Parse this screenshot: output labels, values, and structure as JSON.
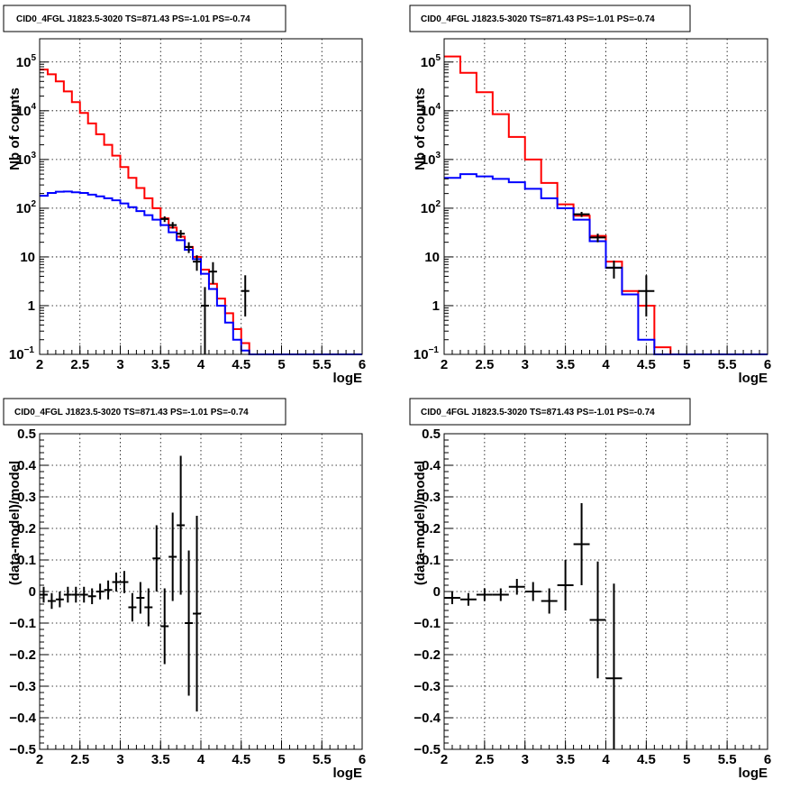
{
  "page": {
    "title_text": "CID0_4FGL J1823.5-3020 TS=871.43 PS=-1.01 PS=-0.74"
  },
  "colors": {
    "data": "#000000",
    "model_total": "#ff0000",
    "model_component": "#0000ff"
  },
  "chart_data": [
    {
      "type": "line",
      "step": true,
      "title": "CID0_4FGL J1823.5-3020 TS=871.43 PS=-1.01 PS=-0.74",
      "xlabel": "logE",
      "ylabel": "Nb of counts",
      "xlim": [
        2,
        6
      ],
      "ylim": [
        0.1,
        300000
      ],
      "yscale": "log",
      "grid": true,
      "xticks": [
        "2",
        "2.5",
        "3",
        "3.5",
        "4",
        "4.5",
        "5",
        "5.5",
        "6"
      ],
      "yticks": [
        {
          "v": 0.1,
          "m": "10",
          "e": "−1"
        },
        {
          "v": 1,
          "m": "1",
          "e": ""
        },
        {
          "v": 10,
          "m": "10",
          "e": ""
        },
        {
          "v": 100,
          "m": "10",
          "e": "2"
        },
        {
          "v": 1000,
          "m": "10",
          "e": "3"
        },
        {
          "v": 10000,
          "m": "10",
          "e": "4"
        },
        {
          "v": 100000,
          "m": "10",
          "e": "5"
        }
      ],
      "bin_width": 0.1,
      "series": [
        {
          "role": "model_total",
          "x": [
            2.0,
            2.1,
            2.2,
            2.3,
            2.4,
            2.5,
            2.6,
            2.7,
            2.8,
            2.9,
            3.0,
            3.1,
            3.2,
            3.3,
            3.4,
            3.5,
            3.6,
            3.7,
            3.8,
            3.9,
            4.0,
            4.1,
            4.2,
            4.3,
            4.4,
            4.5,
            4.6,
            4.7,
            4.8,
            4.9,
            5.0,
            5.1,
            5.2,
            5.3,
            5.4,
            5.5,
            5.6,
            5.7,
            5.8,
            5.9
          ],
          "values": [
            70000,
            56000,
            40000,
            25000,
            15000,
            9000,
            5500,
            3300,
            2000,
            1200,
            700,
            420,
            260,
            160,
            100,
            62,
            40,
            26,
            16,
            10,
            5.5,
            2.8,
            1.4,
            0.7,
            0.33,
            0.17,
            0.1,
            0.1,
            0.1,
            0.1,
            0.1,
            0.1,
            0.1,
            0.1,
            0.1,
            0.1,
            0.1,
            0.1,
            0.1,
            0.1
          ]
        },
        {
          "role": "model_component",
          "x": [
            2.0,
            2.1,
            2.2,
            2.3,
            2.4,
            2.5,
            2.6,
            2.7,
            2.8,
            2.9,
            3.0,
            3.1,
            3.2,
            3.3,
            3.4,
            3.5,
            3.6,
            3.7,
            3.8,
            3.9,
            4.0,
            4.1,
            4.2,
            4.3,
            4.4,
            4.5,
            4.6,
            4.7,
            4.8,
            4.9,
            5.0,
            5.1,
            5.2,
            5.3,
            5.4,
            5.5,
            5.6,
            5.7,
            5.8,
            5.9
          ],
          "values": [
            180,
            205,
            218,
            220,
            212,
            205,
            190,
            175,
            160,
            145,
            125,
            105,
            87,
            72,
            58,
            45,
            32,
            22,
            14,
            9,
            4.5,
            2.2,
            1.0,
            0.45,
            0.2,
            0.12,
            0.1,
            0.1,
            0.1,
            0.1,
            0.1,
            0.1,
            0.1,
            0.1,
            0.1,
            0.1,
            0.1,
            0.1,
            0.1,
            0.1
          ]
        },
        {
          "role": "data",
          "x": [
            3.55,
            3.65,
            3.75,
            3.85,
            3.95,
            4.05,
            4.15,
            4.55
          ],
          "values": [
            60,
            45,
            30,
            16,
            8,
            1,
            5,
            2
          ],
          "err_low": [
            8,
            7,
            5.5,
            4,
            2.8,
            0.9,
            2.2,
            1.4
          ],
          "err_high": [
            8,
            7,
            5.5,
            4,
            2.8,
            1.4,
            2.8,
            2.2
          ]
        }
      ]
    },
    {
      "type": "line",
      "step": true,
      "title": "CID0_4FGL J1823.5-3020 TS=871.43 PS=-1.01 PS=-0.74",
      "xlabel": "logE",
      "ylabel": "Nb of counts",
      "xlim": [
        2,
        6
      ],
      "ylim": [
        0.1,
        300000
      ],
      "yscale": "log",
      "grid": true,
      "xticks": [
        "2",
        "2.5",
        "3",
        "3.5",
        "4",
        "4.5",
        "5",
        "5.5",
        "6"
      ],
      "yticks": [
        {
          "v": 0.1,
          "m": "10",
          "e": "−1"
        },
        {
          "v": 1,
          "m": "1",
          "e": ""
        },
        {
          "v": 10,
          "m": "10",
          "e": ""
        },
        {
          "v": 100,
          "m": "10",
          "e": "2"
        },
        {
          "v": 1000,
          "m": "10",
          "e": "3"
        },
        {
          "v": 10000,
          "m": "10",
          "e": "4"
        },
        {
          "v": 100000,
          "m": "10",
          "e": "5"
        }
      ],
      "bin_width": 0.2,
      "series": [
        {
          "role": "model_total",
          "x": [
            2.0,
            2.2,
            2.4,
            2.6,
            2.8,
            3.0,
            3.2,
            3.4,
            3.6,
            3.8,
            4.0,
            4.2,
            4.4,
            4.6,
            4.8,
            5.0,
            5.2,
            5.4,
            5.6,
            5.8
          ],
          "values": [
            130000,
            60000,
            24000,
            8500,
            2900,
            1000,
            330,
            120,
            70,
            27,
            8,
            2,
            1,
            0.14,
            0.1,
            0.1,
            0.1,
            0.1,
            0.1,
            0.1
          ]
        },
        {
          "role": "model_component",
          "x": [
            2.0,
            2.2,
            2.4,
            2.6,
            2.8,
            3.0,
            3.2,
            3.4,
            3.6,
            3.8,
            4.0,
            4.2,
            4.4,
            4.6,
            4.8,
            5.0,
            5.2,
            5.4,
            5.6,
            5.8
          ],
          "values": [
            420,
            500,
            450,
            400,
            340,
            250,
            160,
            100,
            58,
            21,
            6,
            1.7,
            0.2,
            0.1,
            0.1,
            0.1,
            0.1,
            0.1,
            0.1,
            0.1
          ]
        },
        {
          "role": "data",
          "x": [
            3.7,
            3.9,
            4.1,
            4.5
          ],
          "values": [
            75,
            25,
            6,
            2
          ],
          "err_low": [
            9,
            5,
            2.4,
            1.4
          ],
          "err_high": [
            9,
            5,
            2.4,
            2.2
          ]
        }
      ]
    },
    {
      "type": "scatter",
      "title": "CID0_4FGL J1823.5-3020 TS=871.43 PS=-1.01 PS=-0.74",
      "xlabel": "logE",
      "ylabel": "(data-model)/model",
      "xlim": [
        2,
        6
      ],
      "ylim": [
        -0.5,
        0.5
      ],
      "grid": true,
      "xticks": [
        "2",
        "2.5",
        "3",
        "3.5",
        "4",
        "4.5",
        "5",
        "5.5",
        "6"
      ],
      "yticks": [
        "−0.5",
        "−0.4",
        "−0.3",
        "−0.2",
        "−0.1",
        "0",
        "0.1",
        "0.2",
        "0.3",
        "0.4",
        "0.5"
      ],
      "x_half_width": 0.05,
      "series": [
        {
          "role": "data",
          "x": [
            2.05,
            2.15,
            2.25,
            2.35,
            2.45,
            2.55,
            2.65,
            2.75,
            2.85,
            2.95,
            3.05,
            3.15,
            3.25,
            3.35,
            3.45,
            3.55,
            3.65,
            3.75,
            3.85,
            3.95
          ],
          "y": [
            -0.01,
            -0.03,
            -0.025,
            -0.01,
            -0.01,
            -0.01,
            -0.015,
            0.0,
            0.005,
            0.03,
            0.03,
            -0.05,
            -0.02,
            -0.05,
            0.105,
            -0.11,
            0.11,
            0.21,
            -0.1,
            -0.07
          ],
          "yerr": [
            0.025,
            0.025,
            0.025,
            0.025,
            0.025,
            0.025,
            0.025,
            0.025,
            0.03,
            0.03,
            0.035,
            0.045,
            0.05,
            0.06,
            0.105,
            0.12,
            0.14,
            0.22,
            0.23,
            0.31
          ]
        }
      ]
    },
    {
      "type": "scatter",
      "title": "CID0_4FGL J1823.5-3020 TS=871.43 PS=-1.01 PS=-0.74",
      "xlabel": "logE",
      "ylabel": "(data-model)/model",
      "xlim": [
        2,
        6
      ],
      "ylim": [
        -0.5,
        0.5
      ],
      "grid": true,
      "xticks": [
        "2",
        "2.5",
        "3",
        "3.5",
        "4",
        "4.5",
        "5",
        "5.5",
        "6"
      ],
      "yticks": [
        "−0.5",
        "−0.4",
        "−0.3",
        "−0.2",
        "−0.1",
        "0",
        "0.1",
        "0.2",
        "0.3",
        "0.4",
        "0.5"
      ],
      "x_half_width": 0.1,
      "series": [
        {
          "role": "data",
          "x": [
            2.1,
            2.3,
            2.5,
            2.7,
            2.9,
            3.1,
            3.3,
            3.5,
            3.7,
            3.9,
            4.1
          ],
          "y": [
            -0.02,
            -0.025,
            -0.01,
            -0.01,
            0.015,
            0.0,
            -0.03,
            0.02,
            0.15,
            -0.09,
            -0.275
          ],
          "yerr": [
            0.02,
            0.02,
            0.02,
            0.02,
            0.025,
            0.03,
            0.04,
            0.08,
            0.13,
            0.185,
            0.3
          ]
        }
      ]
    }
  ]
}
